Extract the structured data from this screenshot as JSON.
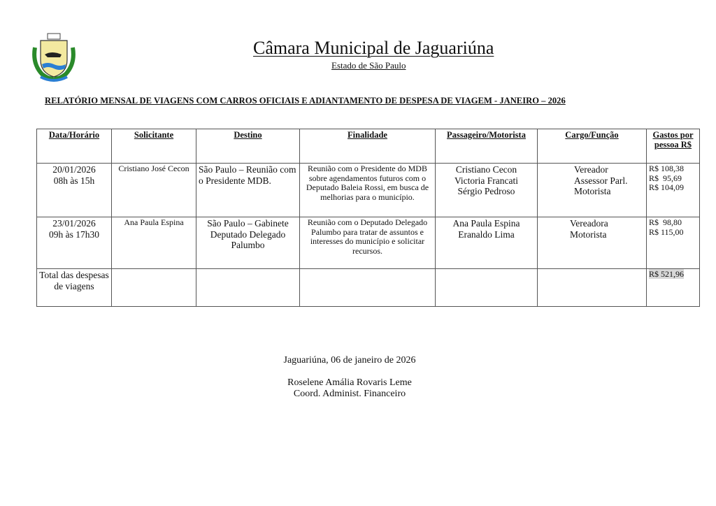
{
  "header": {
    "title": "Câmara Municipal de Jaguariúna",
    "subtitle": "Estado de São Paulo",
    "logo": "municipal-coat-of-arms"
  },
  "report_title": "RELATÓRIO MENSAL DE VIAGENS COM CARROS OFICIAIS  E ADIANTAMENTO DE DESPESA DE VIAGEM  - JANEIRO  – 2026",
  "table": {
    "headers": [
      "Data/Horário",
      "Solicitante",
      "Destino",
      "Finalidade",
      "Passageiro/Motorista",
      "Cargo/Função",
      "Gastos por pessoa R$"
    ],
    "rows": [
      {
        "date": "20/01/2026",
        "time": "08h às 15h",
        "requester": "Cristiano José Cecon",
        "destination": "São Paulo – Reunião com o Presidente MDB.",
        "purpose": "Reunião com o Presidente do MDB sobre agendamentos futuros com o Deputado Baleia Rossi, em busca de melhorias para o município.",
        "passengers": [
          "Cristiano Cecon",
          "Victoria Francati",
          "Sérgio Pedroso"
        ],
        "roles": [
          "Vereador",
          "Assessor Parl.",
          "Motorista"
        ],
        "costs": [
          "R$ 108,38",
          "R$  95,69",
          "R$ 104,09"
        ]
      },
      {
        "date": "23/01/2026",
        "time": "09h às 17h30",
        "requester": "Ana Paula Espina",
        "destination": "São Paulo – Gabinete Deputado Delegado Palumbo",
        "purpose": "Reunião com o Deputado Delegado Palumbo para tratar de assuntos e interesses do município e solicitar recursos.",
        "passengers": [
          "Ana Paula Espina",
          "Eranaldo Lima"
        ],
        "roles": [
          "Vereadora",
          "Motorista"
        ],
        "costs": [
          "R$  98,80",
          "R$ 115,00"
        ]
      }
    ],
    "total_label": "Total das despesas de viagens",
    "total_value": "R$ 521,96"
  },
  "footer": {
    "place_date": "Jaguariúna, 06 de janeiro de 2026",
    "signer": "Roselene Amália Rovaris Leme",
    "signer_role": "Coord. Administ. Financeiro"
  }
}
